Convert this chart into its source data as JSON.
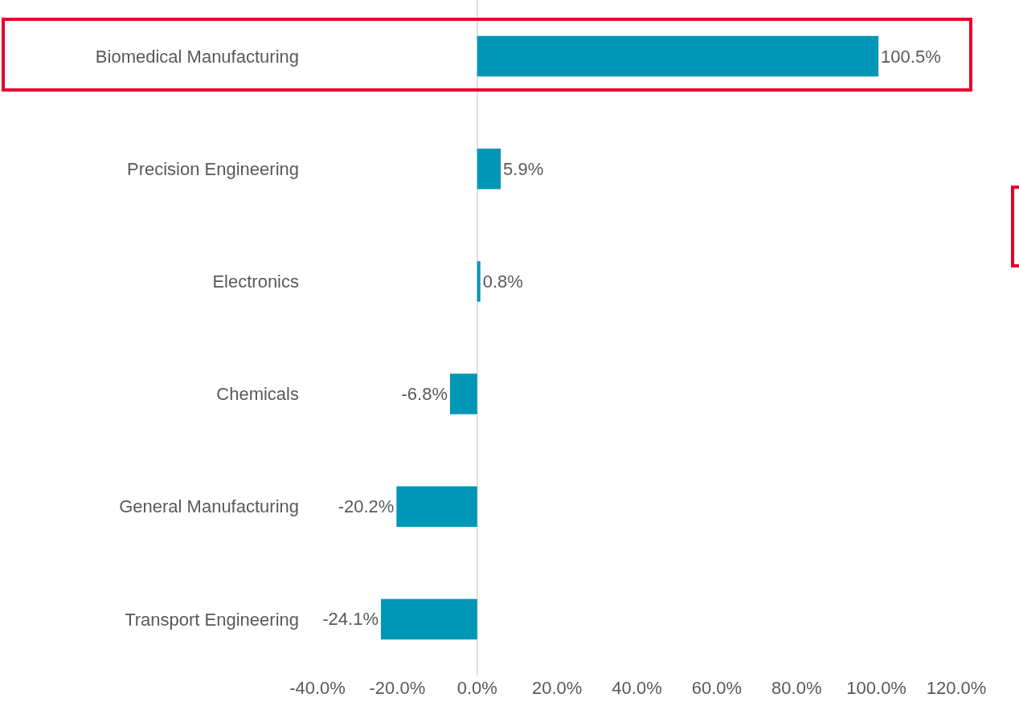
{
  "chart_data": {
    "type": "bar",
    "orientation": "horizontal",
    "categories": [
      "Biomedical Manufacturing",
      "Precision Engineering",
      "Electronics",
      "Chemicals",
      "General Manufacturing",
      "Transport Engineering"
    ],
    "values": [
      100.5,
      5.9,
      0.8,
      -6.8,
      -20.2,
      -24.1
    ],
    "value_labels": [
      "100.5%",
      "5.9%",
      "0.8%",
      "-6.8%",
      "-20.2%",
      "-24.1%"
    ],
    "color": "#0096b6",
    "xlim": [
      -40,
      120
    ],
    "xticks": [
      {
        "value": -40,
        "label": "-40.0%"
      },
      {
        "value": -20,
        "label": "-20.0%"
      },
      {
        "value": 0,
        "label": "0.0%"
      },
      {
        "value": 20,
        "label": "20.0%"
      },
      {
        "value": 40,
        "label": "40.0%"
      },
      {
        "value": 60,
        "label": "60.0%"
      },
      {
        "value": 80,
        "label": "80.0%"
      },
      {
        "value": 100,
        "label": "100.0%"
      },
      {
        "value": 120,
        "label": "120.0%"
      }
    ]
  }
}
